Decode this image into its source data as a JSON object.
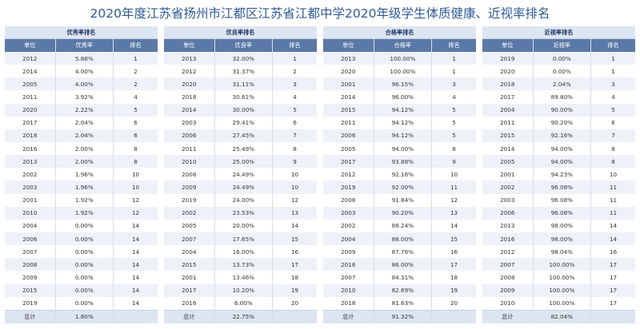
{
  "title": "2020年度江苏省扬州市江都区江苏省江都中学2020年级学生体质健康、近视率排名",
  "tables": [
    {
      "group": "优秀率排名",
      "headers": [
        "单位",
        "优秀率",
        "排名"
      ],
      "rows": [
        [
          "2012",
          "5.88%",
          "1"
        ],
        [
          "2014",
          "4.00%",
          "2"
        ],
        [
          "2005",
          "4.00%",
          "2"
        ],
        [
          "2011",
          "3.92%",
          "4"
        ],
        [
          "2020",
          "2.22%",
          "5"
        ],
        [
          "2017",
          "2.04%",
          "6"
        ],
        [
          "2018",
          "2.04%",
          "6"
        ],
        [
          "2016",
          "2.00%",
          "8"
        ],
        [
          "2013",
          "2.00%",
          "8"
        ],
        [
          "2002",
          "1.96%",
          "10"
        ],
        [
          "2003",
          "1.96%",
          "10"
        ],
        [
          "2001",
          "1.92%",
          "12"
        ],
        [
          "2010",
          "1.92%",
          "12"
        ],
        [
          "2004",
          "0.00%",
          "14"
        ],
        [
          "2006",
          "0.00%",
          "14"
        ],
        [
          "2007",
          "0.00%",
          "14"
        ],
        [
          "2008",
          "0.00%",
          "14"
        ],
        [
          "2009",
          "0.00%",
          "14"
        ],
        [
          "2015",
          "0.00%",
          "14"
        ],
        [
          "2019",
          "0.00%",
          "14"
        ]
      ],
      "total": [
        "总计",
        "1.80%",
        ""
      ]
    },
    {
      "group": "优良率排名",
      "headers": [
        "单位",
        "优良率",
        "排名"
      ],
      "rows": [
        [
          "2013",
          "32.00%",
          "1"
        ],
        [
          "2012",
          "31.37%",
          "2"
        ],
        [
          "2020",
          "31.11%",
          "3"
        ],
        [
          "2018",
          "30.61%",
          "4"
        ],
        [
          "2014",
          "30.00%",
          "5"
        ],
        [
          "2003",
          "29.41%",
          "6"
        ],
        [
          "2006",
          "27.45%",
          "7"
        ],
        [
          "2011",
          "25.49%",
          "8"
        ],
        [
          "2010",
          "25.00%",
          "9"
        ],
        [
          "2008",
          "24.49%",
          "10"
        ],
        [
          "2009",
          "24.49%",
          "10"
        ],
        [
          "2019",
          "24.00%",
          "12"
        ],
        [
          "2002",
          "23.53%",
          "13"
        ],
        [
          "2005",
          "20.00%",
          "14"
        ],
        [
          "2007",
          "17.65%",
          "15"
        ],
        [
          "2004",
          "16.00%",
          "16"
        ],
        [
          "2015",
          "13.73%",
          "17"
        ],
        [
          "2001",
          "13.46%",
          "18"
        ],
        [
          "2017",
          "10.20%",
          "19"
        ],
        [
          "2016",
          "6.00%",
          "20"
        ]
      ],
      "total": [
        "总计",
        "22.75%",
        ""
      ]
    },
    {
      "group": "合格率排名",
      "headers": [
        "单位",
        "合格率",
        "排名"
      ],
      "rows": [
        [
          "2013",
          "100.00%",
          "1"
        ],
        [
          "2020",
          "100.00%",
          "1"
        ],
        [
          "2001",
          "96.15%",
          "3"
        ],
        [
          "2014",
          "96.00%",
          "4"
        ],
        [
          "2015",
          "94.12%",
          "5"
        ],
        [
          "2011",
          "94.12%",
          "5"
        ],
        [
          "2006",
          "94.12%",
          "5"
        ],
        [
          "2005",
          "94.00%",
          "8"
        ],
        [
          "2017",
          "93.88%",
          "9"
        ],
        [
          "2012",
          "92.16%",
          "10"
        ],
        [
          "2019",
          "92.00%",
          "11"
        ],
        [
          "2008",
          "91.84%",
          "12"
        ],
        [
          "2003",
          "90.20%",
          "13"
        ],
        [
          "2002",
          "88.24%",
          "14"
        ],
        [
          "2004",
          "88.00%",
          "15"
        ],
        [
          "2009",
          "87.76%",
          "16"
        ],
        [
          "2016",
          "86.00%",
          "17"
        ],
        [
          "2007",
          "84.31%",
          "18"
        ],
        [
          "2010",
          "82.69%",
          "19"
        ],
        [
          "2018",
          "81.63%",
          "20"
        ]
      ],
      "total": [
        "总计",
        "91.32%",
        ""
      ]
    },
    {
      "group": "近视率排名",
      "headers": [
        "单位",
        "近视率",
        "排名"
      ],
      "rows": [
        [
          "2019",
          "0.00%",
          "1"
        ],
        [
          "2020",
          "0.00%",
          "1"
        ],
        [
          "2018",
          "2.04%",
          "3"
        ],
        [
          "2017",
          "89.80%",
          "4"
        ],
        [
          "2004",
          "90.00%",
          "5"
        ],
        [
          "2011",
          "90.20%",
          "6"
        ],
        [
          "2015",
          "92.16%",
          "7"
        ],
        [
          "2014",
          "94.00%",
          "8"
        ],
        [
          "2005",
          "94.00%",
          "8"
        ],
        [
          "2001",
          "94.23%",
          "10"
        ],
        [
          "2002",
          "96.08%",
          "11"
        ],
        [
          "2003",
          "96.08%",
          "11"
        ],
        [
          "2006",
          "96.08%",
          "11"
        ],
        [
          "2013",
          "98.00%",
          "14"
        ],
        [
          "2016",
          "98.00%",
          "14"
        ],
        [
          "2012",
          "98.04%",
          "16"
        ],
        [
          "2007",
          "100.00%",
          "17"
        ],
        [
          "2008",
          "100.00%",
          "17"
        ],
        [
          "2009",
          "100.00%",
          "17"
        ],
        [
          "2010",
          "100.00%",
          "17"
        ]
      ],
      "total": [
        "总计",
        "82.04%",
        ""
      ]
    }
  ]
}
